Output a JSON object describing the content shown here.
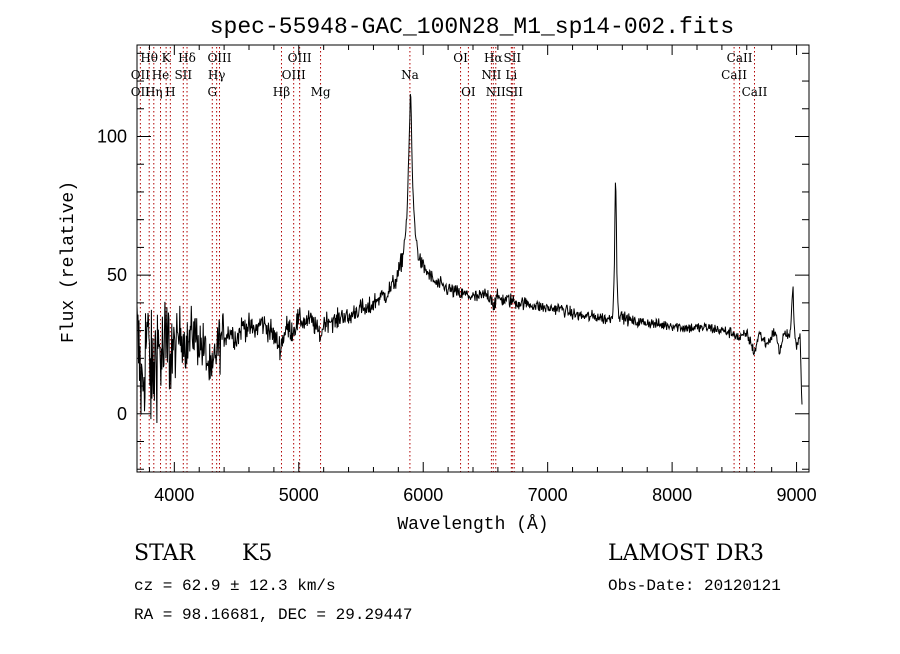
{
  "chart_data": {
    "type": "line",
    "title": "spec-55948-GAC_100N28_M1_sp14-002.fits",
    "xlabel": "Wavelength (Å)",
    "ylabel": "Flux (relative)",
    "xlim": [
      3700,
      9100
    ],
    "ylim": [
      -21,
      133
    ],
    "x_ticks": [
      4000,
      5000,
      6000,
      7000,
      8000,
      9000
    ],
    "x_tick_labels": [
      "4000",
      "5000",
      "6000",
      "7000",
      "8000",
      "9000"
    ],
    "y_ticks": [
      0,
      50,
      100
    ],
    "y_tick_labels": [
      "0",
      "50",
      "100"
    ],
    "x_minor_step": 200,
    "y_minor_step": 10,
    "series": [
      {
        "name": "flux",
        "color": "#000000",
        "anchors": [
          [
            3700,
            28
          ],
          [
            3740,
            8
          ],
          [
            3780,
            30
          ],
          [
            3820,
            10
          ],
          [
            3860,
            26
          ],
          [
            3900,
            20
          ],
          [
            3950,
            24
          ],
          [
            4000,
            22
          ],
          [
            4050,
            30
          ],
          [
            4100,
            24
          ],
          [
            4150,
            30
          ],
          [
            4200,
            26
          ],
          [
            4250,
            22
          ],
          [
            4300,
            12
          ],
          [
            4330,
            22
          ],
          [
            4360,
            26
          ],
          [
            4400,
            28
          ],
          [
            4450,
            30
          ],
          [
            4500,
            27
          ],
          [
            4550,
            32
          ],
          [
            4600,
            31
          ],
          [
            4650,
            30
          ],
          [
            4700,
            33
          ],
          [
            4750,
            31
          ],
          [
            4800,
            28
          ],
          [
            4850,
            24
          ],
          [
            4900,
            31
          ],
          [
            4950,
            30
          ],
          [
            5000,
            34
          ],
          [
            5050,
            33
          ],
          [
            5100,
            34
          ],
          [
            5150,
            30
          ],
          [
            5180,
            28
          ],
          [
            5200,
            33
          ],
          [
            5250,
            34
          ],
          [
            5300,
            33
          ],
          [
            5350,
            36
          ],
          [
            5400,
            34
          ],
          [
            5450,
            37
          ],
          [
            5500,
            38
          ],
          [
            5550,
            37
          ],
          [
            5600,
            40
          ],
          [
            5650,
            42
          ],
          [
            5700,
            43
          ],
          [
            5750,
            46
          ],
          [
            5800,
            50
          ],
          [
            5840,
            58
          ],
          [
            5870,
            72
          ],
          [
            5885,
            95
          ],
          [
            5893,
            108
          ],
          [
            5897,
            118
          ],
          [
            5902,
            112
          ],
          [
            5910,
            90
          ],
          [
            5925,
            72
          ],
          [
            5950,
            60
          ],
          [
            5975,
            55
          ],
          [
            6000,
            53
          ],
          [
            6050,
            50
          ],
          [
            6100,
            47
          ],
          [
            6150,
            46
          ],
          [
            6200,
            45
          ],
          [
            6250,
            44
          ],
          [
            6300,
            43
          ],
          [
            6350,
            43
          ],
          [
            6400,
            42
          ],
          [
            6450,
            42
          ],
          [
            6500,
            43
          ],
          [
            6550,
            42
          ],
          [
            6563,
            39
          ],
          [
            6600,
            42
          ],
          [
            6650,
            41
          ],
          [
            6700,
            41
          ],
          [
            6750,
            40
          ],
          [
            6800,
            40
          ],
          [
            6900,
            39
          ],
          [
            7000,
            38
          ],
          [
            7100,
            38
          ],
          [
            7200,
            36
          ],
          [
            7300,
            35
          ],
          [
            7400,
            35
          ],
          [
            7480,
            34
          ],
          [
            7520,
            35
          ],
          [
            7535,
            50
          ],
          [
            7543,
            84
          ],
          [
            7550,
            78
          ],
          [
            7556,
            50
          ],
          [
            7570,
            36
          ],
          [
            7600,
            35
          ],
          [
            7650,
            34
          ],
          [
            7700,
            33
          ],
          [
            7800,
            33
          ],
          [
            7900,
            32
          ],
          [
            8000,
            32
          ],
          [
            8100,
            31
          ],
          [
            8200,
            31
          ],
          [
            8300,
            31
          ],
          [
            8400,
            30
          ],
          [
            8498,
            29
          ],
          [
            8542,
            27
          ],
          [
            8600,
            29
          ],
          [
            8662,
            22
          ],
          [
            8700,
            29
          ],
          [
            8760,
            25
          ],
          [
            8800,
            28
          ],
          [
            8830,
            30
          ],
          [
            8860,
            22
          ],
          [
            8900,
            29
          ],
          [
            8950,
            28
          ],
          [
            8970,
            46
          ],
          [
            8980,
            32
          ],
          [
            9000,
            25
          ],
          [
            9030,
            28
          ],
          [
            9045,
            0
          ]
        ]
      }
    ],
    "spectral_lines": [
      {
        "label": "Hθ",
        "wavelength": 3798,
        "row": 1
      },
      {
        "label": "OII",
        "wavelength": 3727,
        "row": 2
      },
      {
        "label": "OII",
        "wavelength": 3727,
        "row": 3
      },
      {
        "label": "K",
        "wavelength": 3934,
        "row": 1
      },
      {
        "label": "He",
        "wavelength": 3889,
        "row": 2
      },
      {
        "label": "Hη",
        "wavelength": 3835,
        "row": 3
      },
      {
        "label": "Hδ",
        "wavelength": 4102,
        "row": 1
      },
      {
        "label": "SII",
        "wavelength": 4072,
        "row": 2
      },
      {
        "label": "H",
        "wavelength": 3968,
        "row": 3
      },
      {
        "label": "OIII",
        "wavelength": 4363,
        "row": 1
      },
      {
        "label": "Hγ",
        "wavelength": 4340,
        "row": 2
      },
      {
        "label": "G",
        "wavelength": 4305,
        "row": 3
      },
      {
        "label": "OIII",
        "wavelength": 5007,
        "row": 1
      },
      {
        "label": "OIII",
        "wavelength": 4959,
        "row": 2
      },
      {
        "label": "Hβ",
        "wavelength": 4861,
        "row": 3
      },
      {
        "label": "Mg",
        "wavelength": 5175,
        "row": 3
      },
      {
        "label": "Na",
        "wavelength": 5893,
        "row": 2
      },
      {
        "label": "OI",
        "wavelength": 6300,
        "row": 1
      },
      {
        "label": "OI",
        "wavelength": 6363,
        "row": 3
      },
      {
        "label": "Hα",
        "wavelength": 6563,
        "row": 1
      },
      {
        "label": "NII",
        "wavelength": 6548,
        "row": 2
      },
      {
        "label": "NII",
        "wavelength": 6583,
        "row": 3
      },
      {
        "label": "SII",
        "wavelength": 6716,
        "row": 1
      },
      {
        "label": "Li",
        "wavelength": 6708,
        "row": 2
      },
      {
        "label": "SII",
        "wavelength": 6731,
        "row": 3
      },
      {
        "label": "CaII",
        "wavelength": 8542,
        "row": 1
      },
      {
        "label": "CaII",
        "wavelength": 8498,
        "row": 2
      },
      {
        "label": "CaII",
        "wavelength": 8662,
        "row": 3
      }
    ]
  },
  "info": {
    "class_label": "STAR",
    "subclass_label": "K5",
    "survey_label": "LAMOST DR3",
    "cz_text": "cz = 62.9 ± 12.3 km/s",
    "obs_date_text": "Obs-Date: 20120121",
    "coords_text": "RA =  98.16681, DEC =  29.29447"
  },
  "colors": {
    "axis": "#000000",
    "line": "#000000",
    "marker": "#b00000"
  }
}
